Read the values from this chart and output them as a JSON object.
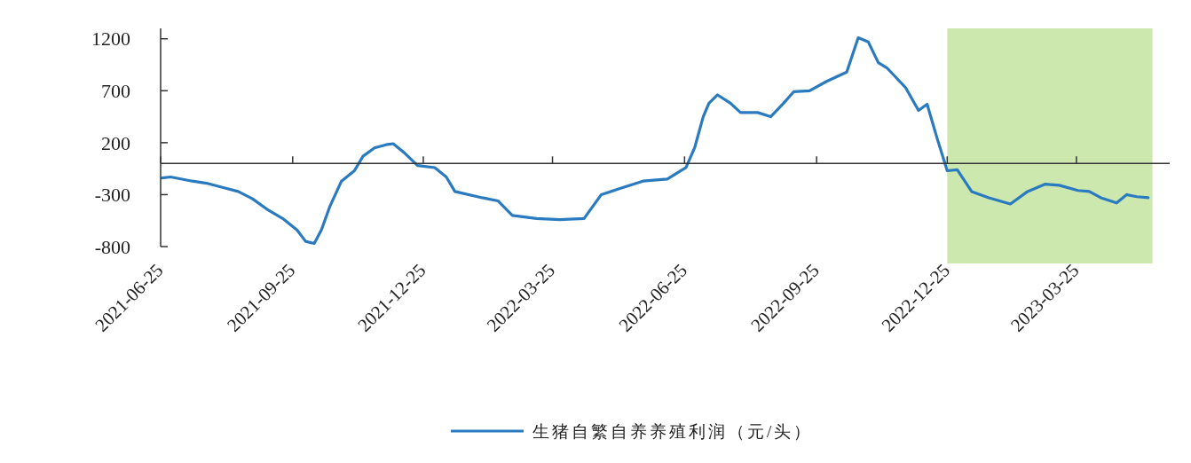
{
  "chart_data": {
    "type": "line",
    "x": [
      "2021-06-26",
      "2021-07-02",
      "2021-07-17",
      "2021-07-27",
      "2021-08-07",
      "2021-08-18",
      "2021-08-28",
      "2021-09-07",
      "2021-09-18",
      "2021-09-28",
      "2021-10-04",
      "2021-10-10",
      "2021-10-15",
      "2021-10-21",
      "2021-10-29",
      "2021-11-07",
      "2021-11-13",
      "2021-11-21",
      "2021-11-29",
      "2021-12-04",
      "2021-12-12",
      "2021-12-21",
      "2022-01-02",
      "2022-01-10",
      "2022-01-16",
      "2022-02-04",
      "2022-02-15",
      "2022-02-25",
      "2022-03-14",
      "2022-03-30",
      "2022-04-16",
      "2022-04-28",
      "2022-05-11",
      "2022-05-27",
      "2022-06-13",
      "2022-06-26",
      "2022-07-02",
      "2022-07-08",
      "2022-07-12",
      "2022-07-18",
      "2022-07-27",
      "2022-08-03",
      "2022-08-15",
      "2022-08-24",
      "2022-09-02",
      "2022-09-09",
      "2022-09-20",
      "2022-10-02",
      "2022-10-16",
      "2022-10-24",
      "2022-10-31",
      "2022-11-07",
      "2022-11-13",
      "2022-11-26",
      "2022-12-05",
      "2022-12-11",
      "2022-12-18",
      "2022-12-25",
      "2023-01-01",
      "2023-01-11",
      "2023-01-23",
      "2023-02-07",
      "2023-02-19",
      "2023-03-03",
      "2023-03-13",
      "2023-03-26",
      "2023-04-03",
      "2023-04-11",
      "2023-04-22",
      "2023-04-29",
      "2023-05-06",
      "2023-05-14"
    ],
    "series": [
      {
        "name": "生猪自繁自养养殖利润（元/头）",
        "color": "#2a7ac0",
        "values": [
          -140,
          -130,
          -170,
          -190,
          -230,
          -270,
          -340,
          -440,
          -530,
          -640,
          -750,
          -770,
          -640,
          -410,
          -170,
          -70,
          70,
          150,
          180,
          190,
          100,
          -20,
          -40,
          -130,
          -270,
          -330,
          -360,
          -500,
          -530,
          -540,
          -530,
          -300,
          -240,
          -170,
          -150,
          -40,
          150,
          450,
          580,
          660,
          580,
          490,
          490,
          450,
          580,
          690,
          700,
          790,
          880,
          1210,
          1170,
          970,
          920,
          730,
          510,
          570,
          240,
          -70,
          -60,
          -270,
          -330,
          -390,
          -270,
          -200,
          -210,
          -260,
          -270,
          -330,
          -380,
          -300,
          -320,
          -330
        ]
      }
    ],
    "xlim": [
      "2021-06-25",
      "2023-05-29"
    ],
    "xticks": [
      {
        "value": "2021-06-25",
        "label": "2021-06-25"
      },
      {
        "value": "2021-09-25",
        "label": "2021-09-25"
      },
      {
        "value": "2021-12-25",
        "label": "2021-12-25"
      },
      {
        "value": "2022-03-25",
        "label": "2022-03-25"
      },
      {
        "value": "2022-06-25",
        "label": "2022-06-25"
      },
      {
        "value": "2022-09-25",
        "label": "2022-09-25"
      },
      {
        "value": "2022-12-25",
        "label": "2022-12-25"
      },
      {
        "value": "2023-03-25",
        "label": "2023-03-25"
      }
    ],
    "ylim": [
      -800,
      1300
    ],
    "yticks": [
      -800,
      -300,
      200,
      700,
      1200
    ],
    "bands": [
      {
        "axis": "x",
        "from": "2022-12-25",
        "to": "2023-05-17",
        "color": "#c4e4a0"
      }
    ],
    "legend": "bottom",
    "grid": false,
    "marker": "none",
    "line_style": "solid"
  }
}
